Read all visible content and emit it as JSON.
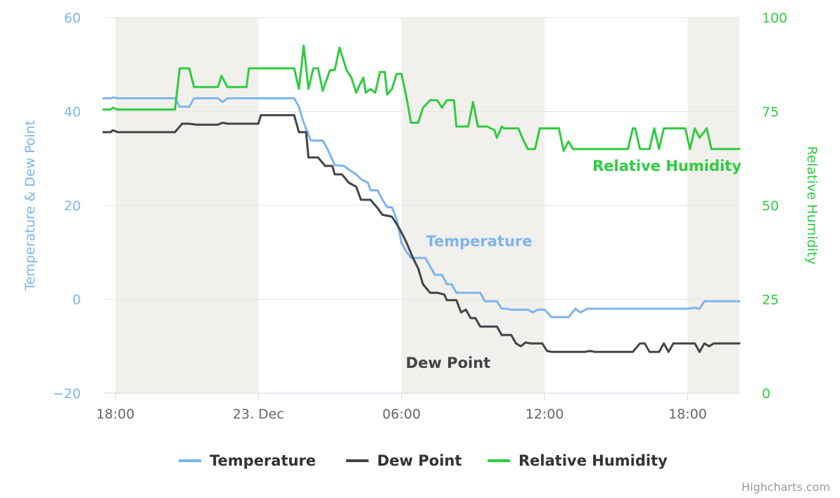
{
  "chart_data": {
    "type": "line",
    "x_start": "22 Dec 17:30",
    "x_end": "23 Dec 20:05",
    "x_tick_labels": [
      "18:00",
      "23. Dec",
      "06:00",
      "12:00",
      "18:00"
    ],
    "x_tick_hours": [
      18,
      24,
      30,
      36,
      42
    ],
    "night_bands": [
      [
        18,
        24
      ],
      [
        30,
        36
      ],
      [
        42,
        44.17
      ]
    ],
    "x_range_hours": [
      17.5,
      44.17
    ],
    "yaxis_left": {
      "title": "Temperature & Dew Point",
      "min": -20,
      "max": 60,
      "ticks": [
        -20,
        0,
        20,
        40,
        60
      ],
      "tick_labels": [
        "−20",
        "0",
        "20",
        "40",
        "60"
      ],
      "color": "#7cb5ec"
    },
    "yaxis_right": {
      "title": "Relative Humidity",
      "min": 0,
      "max": 100,
      "ticks": [
        0,
        25,
        50,
        75,
        100
      ],
      "tick_labels": [
        "0",
        "25",
        "50",
        "75",
        "100"
      ],
      "color": "#2ecc40"
    },
    "series": [
      {
        "name": "Temperature",
        "axis": "left",
        "color": "#7cb5ec",
        "points": [
          [
            17.5,
            42.8
          ],
          [
            17.8,
            42.8
          ],
          [
            17.9,
            43
          ],
          [
            18.1,
            42.8
          ],
          [
            20.5,
            42.8
          ],
          [
            20.7,
            41
          ],
          [
            21.1,
            41
          ],
          [
            21.3,
            42.8
          ],
          [
            22.3,
            42.8
          ],
          [
            22.5,
            42
          ],
          [
            22.7,
            42.8
          ],
          [
            24,
            42.8
          ],
          [
            25.5,
            42.8
          ],
          [
            25.7,
            41
          ],
          [
            25.9,
            37.6
          ],
          [
            26.2,
            33.8
          ],
          [
            26.7,
            33.8
          ],
          [
            26.9,
            32
          ],
          [
            27.2,
            28.6
          ],
          [
            27.6,
            28.4
          ],
          [
            27.8,
            27.6
          ],
          [
            28.1,
            26.6
          ],
          [
            28.3,
            25.6
          ],
          [
            28.6,
            24.8
          ],
          [
            28.7,
            23.2
          ],
          [
            29.0,
            23.2
          ],
          [
            29.2,
            21.2
          ],
          [
            29.4,
            19.6
          ],
          [
            29.6,
            19.6
          ],
          [
            29.8,
            17
          ],
          [
            30.0,
            12
          ],
          [
            30.2,
            10.2
          ],
          [
            30.4,
            8.8
          ],
          [
            31.0,
            8.8
          ],
          [
            31.2,
            7
          ],
          [
            31.4,
            5.2
          ],
          [
            31.7,
            5.2
          ],
          [
            31.9,
            3.2
          ],
          [
            32.1,
            3.2
          ],
          [
            32.3,
            1.4
          ],
          [
            33.3,
            1.4
          ],
          [
            33.5,
            -0.4
          ],
          [
            34.0,
            -0.4
          ],
          [
            34.2,
            -2
          ],
          [
            34.4,
            -2
          ],
          [
            34.6,
            -2.2
          ],
          [
            35.3,
            -2.2
          ],
          [
            35.5,
            -2.8
          ],
          [
            35.7,
            -2.2
          ],
          [
            36.0,
            -2.2
          ],
          [
            36.3,
            -3.8
          ],
          [
            37.0,
            -3.8
          ],
          [
            37.3,
            -2
          ],
          [
            37.5,
            -2.8
          ],
          [
            37.8,
            -2
          ],
          [
            42.0,
            -2
          ],
          [
            42.3,
            -1.8
          ],
          [
            42.5,
            -2
          ],
          [
            42.7,
            -0.4
          ],
          [
            44.17,
            -0.4
          ]
        ]
      },
      {
        "name": "Dew Point",
        "axis": "left",
        "color": "#434348",
        "points": [
          [
            17.5,
            35.6
          ],
          [
            17.8,
            35.6
          ],
          [
            17.9,
            36
          ],
          [
            18.1,
            35.6
          ],
          [
            20.5,
            35.6
          ],
          [
            20.8,
            37.4
          ],
          [
            21.1,
            37.4
          ],
          [
            21.4,
            37.2
          ],
          [
            22.3,
            37.2
          ],
          [
            22.5,
            37.6
          ],
          [
            22.7,
            37.4
          ],
          [
            24,
            37.4
          ],
          [
            24.1,
            39.2
          ],
          [
            25.5,
            39.2
          ],
          [
            25.7,
            35.6
          ],
          [
            26.0,
            35.6
          ],
          [
            26.1,
            30.2
          ],
          [
            26.5,
            30.2
          ],
          [
            26.8,
            28.4
          ],
          [
            27.1,
            28.4
          ],
          [
            27.2,
            26.6
          ],
          [
            27.5,
            26.6
          ],
          [
            27.8,
            24.8
          ],
          [
            28.1,
            24
          ],
          [
            28.3,
            21.2
          ],
          [
            28.7,
            21.2
          ],
          [
            29.0,
            19.4
          ],
          [
            29.2,
            18
          ],
          [
            29.6,
            17.6
          ],
          [
            29.9,
            15.2
          ],
          [
            30.2,
            12.2
          ],
          [
            30.5,
            8.6
          ],
          [
            30.7,
            6.6
          ],
          [
            30.9,
            3.2
          ],
          [
            31.2,
            1.4
          ],
          [
            31.5,
            1.4
          ],
          [
            31.8,
            1
          ],
          [
            31.9,
            -0.2
          ],
          [
            32.3,
            -0.2
          ],
          [
            32.5,
            -2.8
          ],
          [
            32.7,
            -2.2
          ],
          [
            32.9,
            -4
          ],
          [
            33.1,
            -4
          ],
          [
            33.3,
            -5.8
          ],
          [
            34.0,
            -5.8
          ],
          [
            34.2,
            -7.6
          ],
          [
            34.6,
            -7.6
          ],
          [
            34.8,
            -9.4
          ],
          [
            35.0,
            -10
          ],
          [
            35.2,
            -9.2
          ],
          [
            35.4,
            -9.4
          ],
          [
            35.9,
            -9.4
          ],
          [
            36.1,
            -11
          ],
          [
            36.3,
            -11.2
          ],
          [
            37.7,
            -11.2
          ],
          [
            37.9,
            -11
          ],
          [
            38.1,
            -11.2
          ],
          [
            39.7,
            -11.2
          ],
          [
            40.0,
            -9.4
          ],
          [
            40.2,
            -9.4
          ],
          [
            40.4,
            -11.2
          ],
          [
            40.8,
            -11.2
          ],
          [
            41.0,
            -9.4
          ],
          [
            41.2,
            -11.2
          ],
          [
            41.4,
            -9.4
          ],
          [
            42.3,
            -9.4
          ],
          [
            42.5,
            -11.2
          ],
          [
            42.7,
            -9.4
          ],
          [
            42.9,
            -10
          ],
          [
            43.1,
            -9.4
          ],
          [
            44.17,
            -9.4
          ]
        ]
      },
      {
        "name": "Relative Humidity",
        "axis": "right",
        "color": "#2ecc40",
        "points": [
          [
            17.5,
            75.5
          ],
          [
            17.8,
            75.5
          ],
          [
            17.9,
            76
          ],
          [
            18.1,
            75.5
          ],
          [
            20.5,
            75.5
          ],
          [
            20.7,
            86.5
          ],
          [
            21.1,
            86.5
          ],
          [
            21.3,
            81.5
          ],
          [
            22.3,
            81.5
          ],
          [
            22.45,
            84.5
          ],
          [
            22.7,
            81.5
          ],
          [
            23.5,
            81.5
          ],
          [
            23.6,
            86.5
          ],
          [
            25.5,
            86.5
          ],
          [
            25.7,
            81
          ],
          [
            25.9,
            92.5
          ],
          [
            26.1,
            81
          ],
          [
            26.3,
            86.5
          ],
          [
            26.5,
            86.5
          ],
          [
            26.7,
            80.5
          ],
          [
            27.0,
            86
          ],
          [
            27.2,
            86
          ],
          [
            27.4,
            92
          ],
          [
            27.7,
            86
          ],
          [
            27.9,
            84
          ],
          [
            28.1,
            80
          ],
          [
            28.2,
            81.5
          ],
          [
            28.4,
            84
          ],
          [
            28.5,
            80
          ],
          [
            28.7,
            81
          ],
          [
            28.9,
            80
          ],
          [
            29.1,
            85.5
          ],
          [
            29.3,
            85.5
          ],
          [
            29.4,
            79.5
          ],
          [
            29.6,
            81
          ],
          [
            29.8,
            85
          ],
          [
            30.0,
            85
          ],
          [
            30.2,
            79
          ],
          [
            30.4,
            72
          ],
          [
            30.7,
            72
          ],
          [
            30.9,
            76
          ],
          [
            31.2,
            78
          ],
          [
            31.5,
            78
          ],
          [
            31.7,
            76
          ],
          [
            31.9,
            78
          ],
          [
            32.2,
            78
          ],
          [
            32.3,
            71
          ],
          [
            32.8,
            71
          ],
          [
            33.0,
            77.5
          ],
          [
            33.2,
            71
          ],
          [
            33.6,
            71
          ],
          [
            33.9,
            70
          ],
          [
            34.0,
            68
          ],
          [
            34.2,
            71
          ],
          [
            34.3,
            70.5
          ],
          [
            34.9,
            70.5
          ],
          [
            35.1,
            67.5
          ],
          [
            35.3,
            65
          ],
          [
            35.6,
            65
          ],
          [
            35.8,
            70.5
          ],
          [
            36.6,
            70.5
          ],
          [
            36.8,
            64.5
          ],
          [
            37.0,
            67
          ],
          [
            37.2,
            65
          ],
          [
            39.5,
            65
          ],
          [
            39.7,
            70.5
          ],
          [
            39.8,
            70.5
          ],
          [
            40.0,
            65
          ],
          [
            40.4,
            65
          ],
          [
            40.6,
            70.5
          ],
          [
            40.8,
            65
          ],
          [
            41.0,
            70.5
          ],
          [
            41.9,
            70.5
          ],
          [
            42.1,
            65
          ],
          [
            42.3,
            70.5
          ],
          [
            42.5,
            68
          ],
          [
            42.8,
            70.5
          ],
          [
            43.0,
            65
          ],
          [
            44.17,
            65
          ]
        ]
      }
    ],
    "series_labels": [
      {
        "series": "Relative Humidity",
        "text": "Relative Humidity"
      },
      {
        "series": "Temperature",
        "text": "Temperature"
      },
      {
        "series": "Dew Point",
        "text": "Dew Point"
      }
    ],
    "legend": [
      "Temperature",
      "Dew Point",
      "Relative Humidity"
    ],
    "legend_position": "bottom-center",
    "grid": true,
    "credits": "Highcharts.com"
  }
}
